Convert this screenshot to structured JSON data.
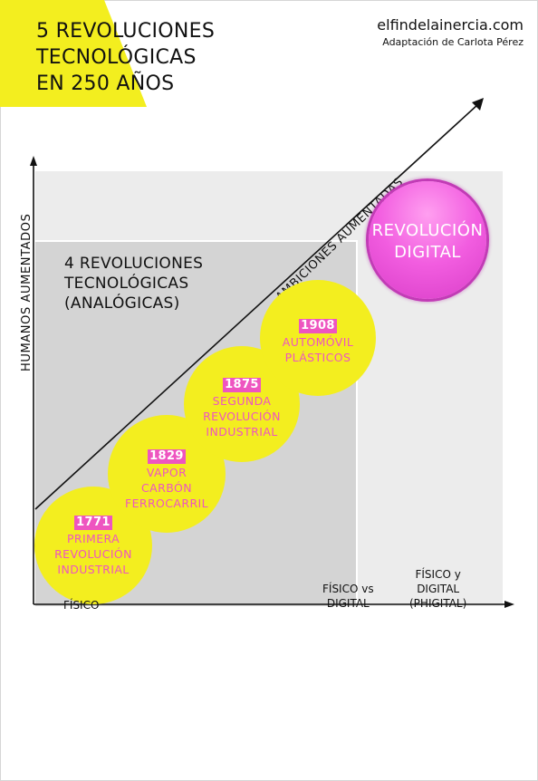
{
  "title": [
    "5 REVOLUCIONES",
    "TECNOLÓGICAS",
    "EN 250 AÑOS"
  ],
  "site": "elfindelainercia.com",
  "credit": "Adaptación de Carlota Pérez",
  "y_axis_label": "HUMANOS AUMENTADOS",
  "diagonal_label": "AMBICIONES AUMENTADAS",
  "inner_region_label": [
    "4 REVOLUCIONES",
    "TECNOLÓGICAS",
    "(ANALÓGICAS)"
  ],
  "revolutions": [
    {
      "year": "1771",
      "lines": [
        "PRIMERA",
        "REVOLUCIÓN",
        "INDUSTRIAL"
      ]
    },
    {
      "year": "1829",
      "lines": [
        "VAPOR",
        "CARBÓN",
        "FERROCARRIL"
      ]
    },
    {
      "year": "1875",
      "lines": [
        "SEGUNDA",
        "REVOLUCIÓN",
        "INDUSTRIAL"
      ]
    },
    {
      "year": "1908",
      "lines": [
        "AUTOMÓVIL",
        "PLÁSTICOS"
      ]
    }
  ],
  "digital_revolution": [
    "REVOLUCIÓN",
    "DIGITAL"
  ],
  "x_axis_labels": {
    "fisico": [
      "FÍSICO"
    ],
    "fisico_vs_digital": [
      "FÍSICO vs",
      "DIGITAL"
    ],
    "phigital": [
      "FÍSICO y",
      "DIGITAL",
      "(PHIGITAL)"
    ]
  },
  "colors": {
    "yellow": "#f3ee1f",
    "pink": "#ee55c0",
    "magenta": "#f25de0",
    "outer_region": "#ececec",
    "inner_region": "#d4d4d4"
  }
}
